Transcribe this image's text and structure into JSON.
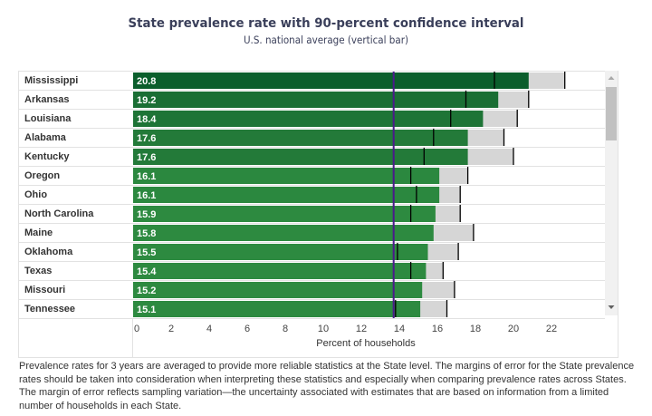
{
  "chart_data": {
    "type": "bar",
    "orientation": "horizontal",
    "title": "State prevalence rate with 90-percent confidence interval",
    "subtitle": "U.S. national average (vertical bar)",
    "xlabel": "Percent of households",
    "xlim": [
      0,
      24
    ],
    "xticks": [
      0,
      2,
      4,
      6,
      8,
      10,
      12,
      14,
      16,
      18,
      20,
      22
    ],
    "national_average": 13.7,
    "categories": [
      "Mississippi",
      "Arkansas",
      "Louisiana",
      "Alabama",
      "Kentucky",
      "Oregon",
      "Ohio",
      "North Carolina",
      "Maine",
      "Oklahoma",
      "Texas",
      "Missouri",
      "Tennessee"
    ],
    "values": [
      20.8,
      19.2,
      18.4,
      17.6,
      17.6,
      16.1,
      16.1,
      15.9,
      15.8,
      15.5,
      15.4,
      15.2,
      15.1
    ],
    "ci_lower": [
      19.0,
      17.5,
      16.7,
      15.8,
      15.3,
      14.6,
      14.9,
      14.6,
      13.7,
      13.9,
      14.6,
      13.7,
      13.8
    ],
    "ci_upper": [
      22.7,
      20.8,
      20.2,
      19.5,
      20.0,
      17.6,
      17.2,
      17.2,
      17.9,
      17.1,
      16.3,
      16.9,
      16.5
    ],
    "bar_colors": [
      "#0b5e2c",
      "#1a6e34",
      "#1e7436",
      "#237a39",
      "#237a39",
      "#2b883f",
      "#2b883f",
      "#2d8a40",
      "#2d8a40",
      "#2d8a40",
      "#2d8a40",
      "#2d8a40",
      "#2d8a40"
    ],
    "ci_color": "#d6d6d6",
    "average_line_color": "#4b1a8a",
    "grid": false
  },
  "footnote": "Prevalence rates for 3 years are averaged to provide more reliable statistics at the State level. The margins of error for the State prevalence rates should be taken into consideration when interpreting these statistics and especially when comparing prevalence rates across States. The margin of error reflects sampling variation—the uncertainty associated with estimates that are based on information from a limited number of households in each State."
}
